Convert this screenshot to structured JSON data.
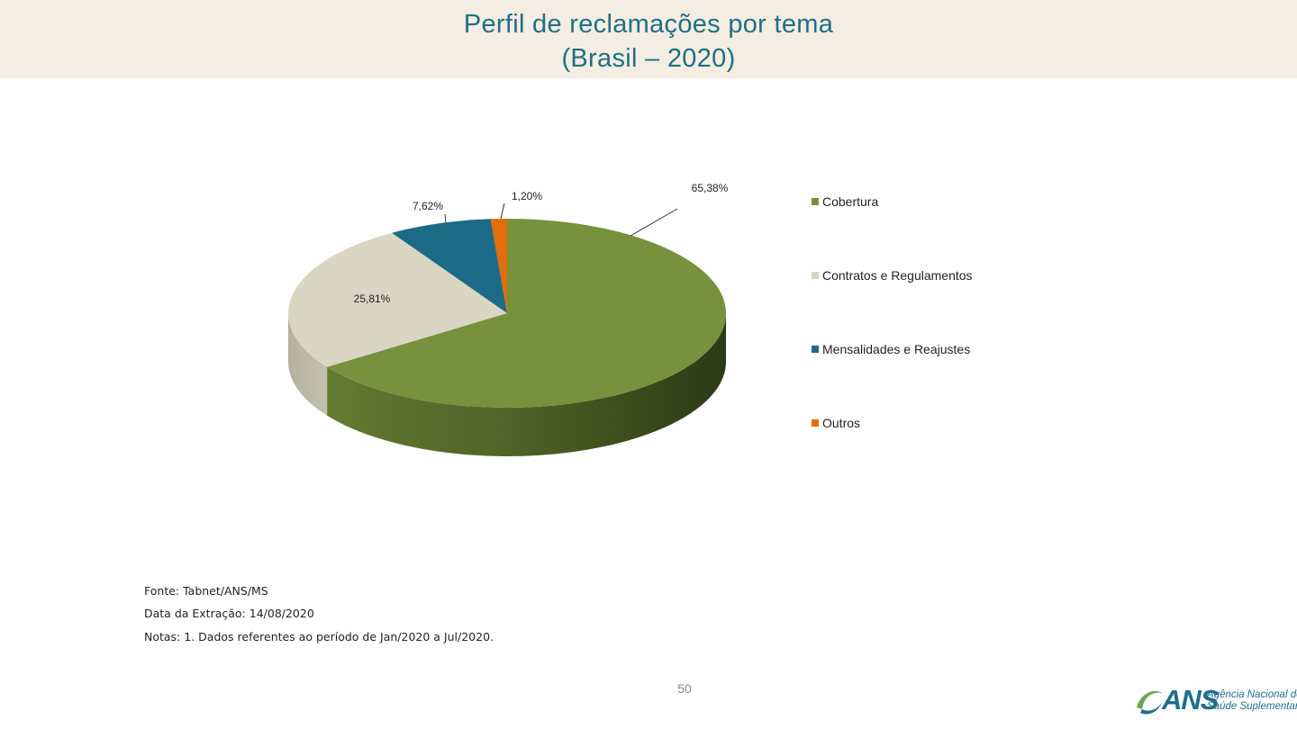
{
  "header": {
    "title_line1": "Perfil de reclamações por tema",
    "title_line2": "(Brasil – 2020)"
  },
  "chart_data": {
    "type": "pie",
    "style": "3d",
    "categories": [
      "Cobertura",
      "Contratos e Regulamentos",
      "Mensalidades e Reajustes",
      "Outros"
    ],
    "values": [
      65.38,
      25.81,
      7.62,
      1.2
    ],
    "data_labels": [
      "65,38%",
      "25,81%",
      "7,62%",
      "1,20%"
    ],
    "colors": [
      "#76923c",
      "#d9d6c4",
      "#1c6b86",
      "#e46c0a"
    ],
    "legend_position": "right"
  },
  "footer": {
    "source": "Fonte: Tabnet/ANS/MS",
    "extraction_date": "Data da Extração: 14/08/2020",
    "notes": "Notas:  1. Dados referentes ao período de Jan/2020 a Jul/2020.",
    "page_number": "50"
  },
  "logo": {
    "acronym": "ANS",
    "name_line1": "Agência Nacional de",
    "name_line2": "Saúde Suplementar",
    "icon": "ans-logo-icon"
  }
}
